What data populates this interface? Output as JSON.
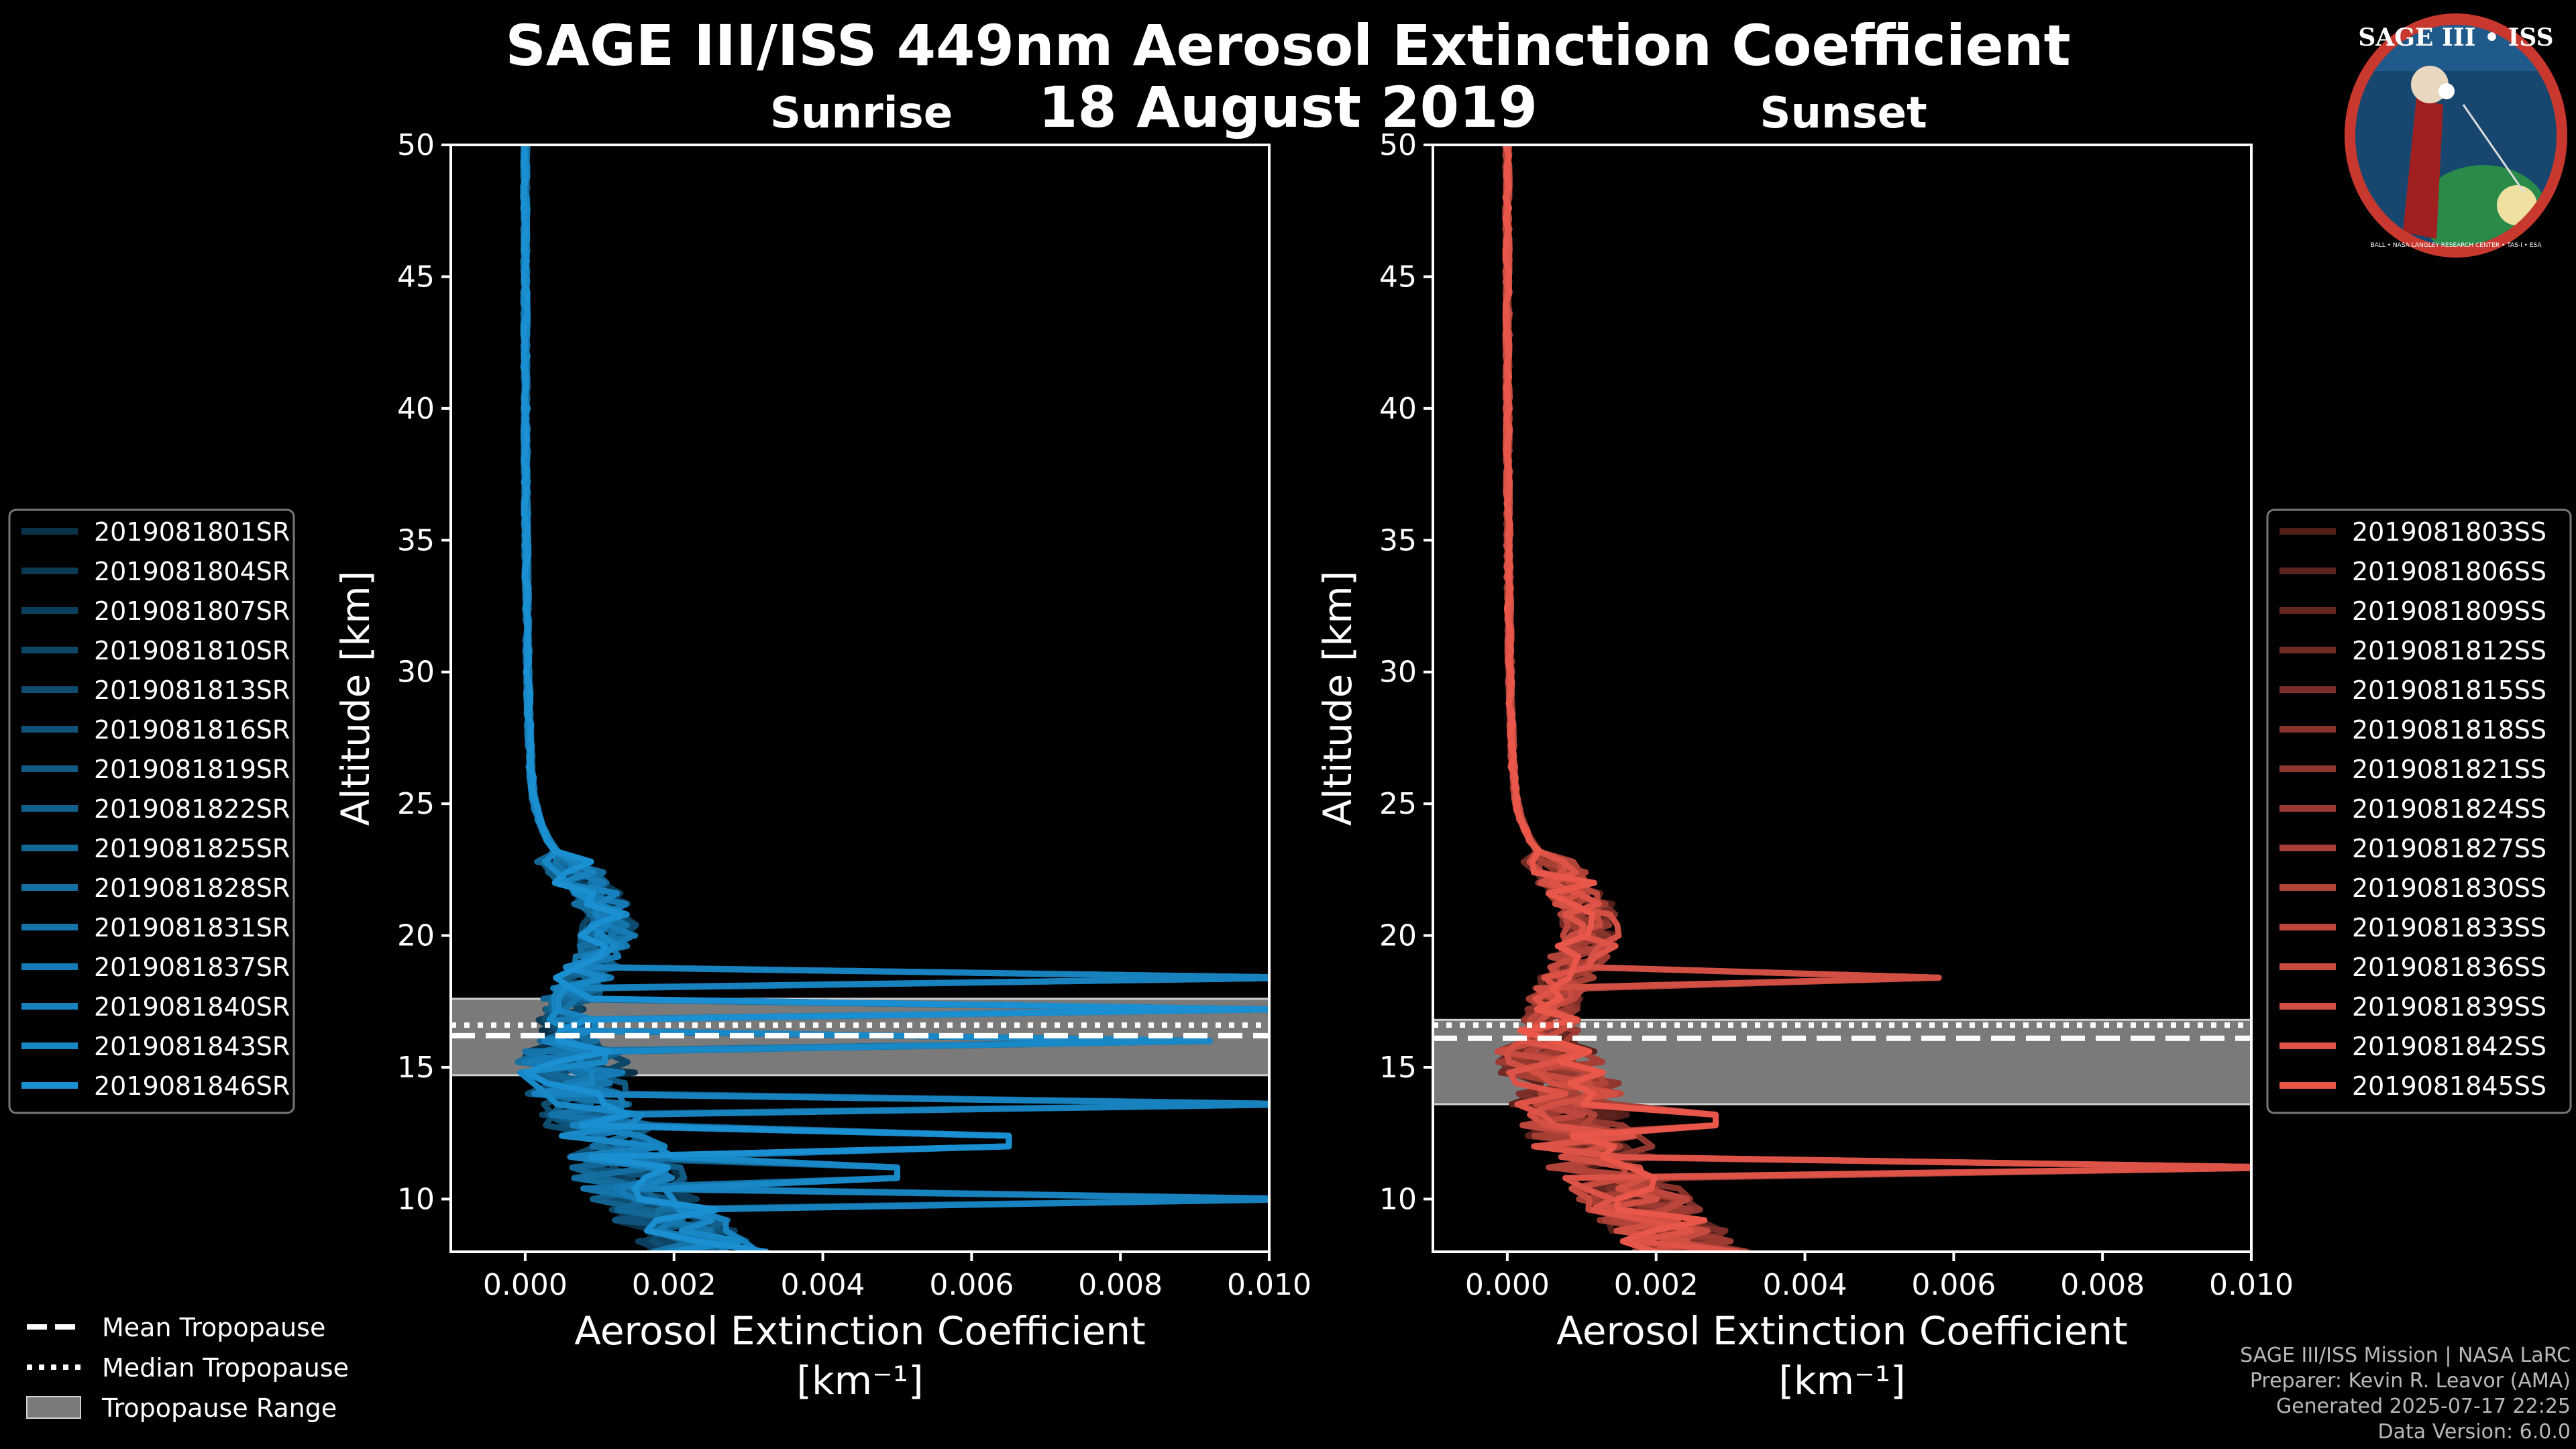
{
  "title": "SAGE III/ISS 449nm Aerosol Extinction Coefficient",
  "date": "18 August 2019",
  "logo": {
    "text": "SAGE III • ISS",
    "ring_text": "BALL • NASA LANGLEY RESEARCH CENTER • TAS-I • ESA"
  },
  "footer": {
    "line1": "SAGE III/ISS Mission | NASA LaRC",
    "line2": "Preparer: Kevin R. Leavor (AMA)",
    "line3": "Generated 2025-07-17 22:25",
    "line4": "Data Version: 6.0.0"
  },
  "tropopause_legend": {
    "mean": "Mean Tropopause",
    "median": "Median Tropopause",
    "range": "Tropopause Range"
  },
  "colors": {
    "sunrise": "#1a8fd1",
    "sunset": "#e8574a",
    "tropopause_range": "#7a7a7a"
  },
  "chart_data": [
    {
      "type": "line",
      "panel": "Sunrise",
      "title": "Sunrise",
      "xlabel": "Aerosol Extinction Coefficient",
      "xlabel_unit": "[km⁻¹]",
      "ylabel": "Altitude [km]",
      "xlim": [
        -0.001,
        0.01
      ],
      "ylim": [
        8,
        50
      ],
      "xticks": [
        "0.000",
        "0.002",
        "0.004",
        "0.006",
        "0.008",
        "0.010"
      ],
      "xtick_values": [
        0,
        0.002,
        0.004,
        0.006,
        0.008,
        0.01
      ],
      "yticks": [
        10,
        15,
        20,
        25,
        30,
        35,
        40,
        45,
        50
      ],
      "legend": [
        "2019081801SR",
        "2019081804SR",
        "2019081807SR",
        "2019081810SR",
        "2019081813SR",
        "2019081816SR",
        "2019081819SR",
        "2019081822SR",
        "2019081825SR",
        "2019081828SR",
        "2019081831SR",
        "2019081837SR",
        "2019081840SR",
        "2019081843SR",
        "2019081846SR"
      ],
      "tropopause": {
        "mean": 16.2,
        "median": 16.6,
        "range": [
          14.7,
          17.6
        ]
      },
      "spikes": {
        "y": [
          18.3,
          17.3,
          16.0,
          13.7,
          12.2,
          11.0,
          10.1
        ],
        "x": [
          0.0105,
          0.01,
          0.0092,
          0.0105,
          0.0065,
          0.005,
          0.0105
        ]
      }
    },
    {
      "type": "line",
      "panel": "Sunset",
      "title": "Sunset",
      "xlabel": "Aerosol Extinction Coefficient",
      "xlabel_unit": "[km⁻¹]",
      "ylabel": "Altitude [km]",
      "xlim": [
        -0.001,
        0.01
      ],
      "ylim": [
        8,
        50
      ],
      "xticks": [
        "0.000",
        "0.002",
        "0.004",
        "0.006",
        "0.008",
        "0.010"
      ],
      "xtick_values": [
        0,
        0.002,
        0.004,
        0.006,
        0.008,
        0.01
      ],
      "yticks": [
        10,
        15,
        20,
        25,
        30,
        35,
        40,
        45,
        50
      ],
      "legend": [
        "2019081803SS",
        "2019081806SS",
        "2019081809SS",
        "2019081812SS",
        "2019081815SS",
        "2019081818SS",
        "2019081821SS",
        "2019081824SS",
        "2019081827SS",
        "2019081830SS",
        "2019081833SS",
        "2019081836SS",
        "2019081839SS",
        "2019081842SS",
        "2019081845SS"
      ],
      "tropopause": {
        "mean": 16.1,
        "median": 16.6,
        "range": [
          13.6,
          16.8
        ]
      },
      "spikes": {
        "y": [
          18.5,
          13.0,
          11.1
        ],
        "x": [
          0.0058,
          0.0028,
          0.0105
        ]
      }
    }
  ]
}
